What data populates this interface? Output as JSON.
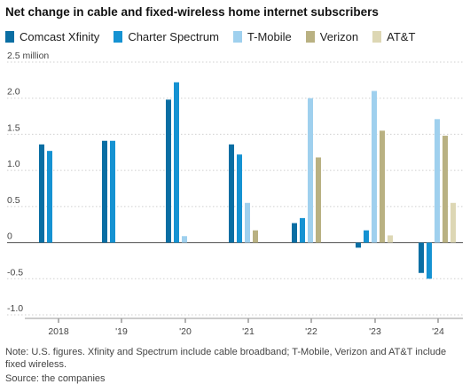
{
  "title": "Net change in cable and fixed-wireless home internet subscribers",
  "note": "Note: U.S. figures. Xfinity and Spectrum include cable broadband; T-Mobile, Verizon and AT&T include fixed wireless.",
  "source": "Source: the companies",
  "chart_data": {
    "type": "bar",
    "title": "Net change in cable and fixed-wireless home internet subscribers",
    "categories": [
      "2018",
      "'19",
      "'20",
      "'21",
      "'22",
      "'23",
      "'24"
    ],
    "y_unit_label": "2.5 million",
    "ylim": [
      -1.0,
      2.5
    ],
    "yticks": [
      "-1.0",
      "-0.5",
      "0",
      "0.5",
      "1.0",
      "1.5",
      "2.0",
      "2.5 million"
    ],
    "ytick_values": [
      -1.0,
      -0.5,
      0,
      0.5,
      1.0,
      1.5,
      2.0,
      2.5
    ],
    "grid": true,
    "legend_position": "top",
    "series": [
      {
        "name": "Comcast Xfinity",
        "color": "#0a6ea3",
        "values": [
          1.36,
          1.41,
          1.98,
          1.36,
          0.27,
          -0.07,
          -0.42
        ]
      },
      {
        "name": "Charter Spectrum",
        "color": "#1592d2",
        "values": [
          1.27,
          1.41,
          2.22,
          1.22,
          0.34,
          0.17,
          -0.5
        ]
      },
      {
        "name": "T-Mobile",
        "color": "#9fd0ee",
        "values": [
          null,
          null,
          0.09,
          0.55,
          2.0,
          2.1,
          1.71
        ]
      },
      {
        "name": "Verizon",
        "color": "#b9b182",
        "values": [
          null,
          null,
          null,
          0.17,
          1.18,
          1.55,
          1.48
        ]
      },
      {
        "name": "AT&T",
        "color": "#ddd7b4",
        "values": [
          null,
          null,
          null,
          null,
          null,
          0.1,
          0.55
        ]
      }
    ]
  }
}
